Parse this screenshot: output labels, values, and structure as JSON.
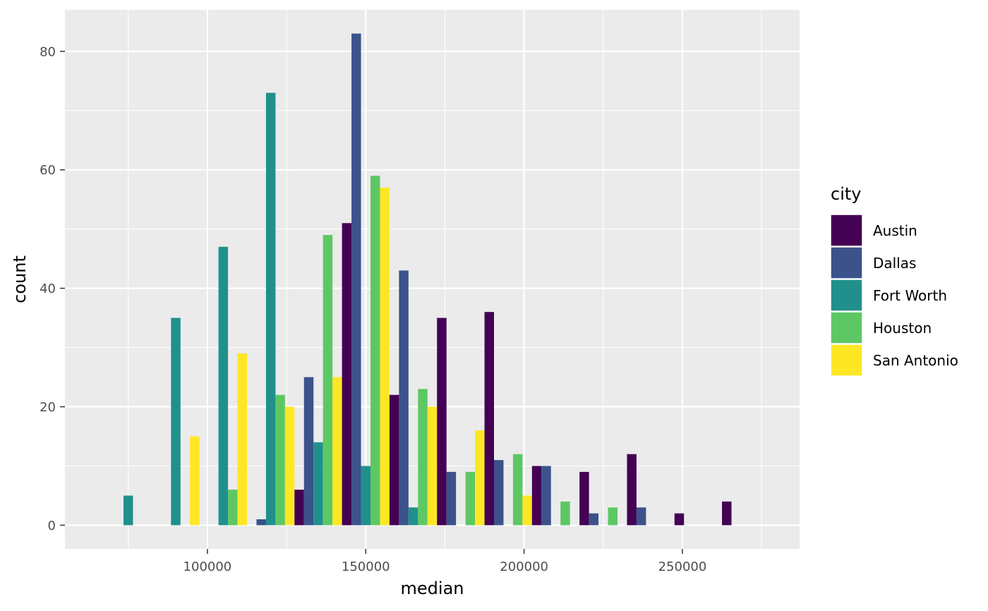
{
  "chart_data": {
    "type": "bar",
    "xlabel": "median",
    "ylabel": "count",
    "xlim": [
      55000,
      287000
    ],
    "ylim": [
      -4,
      87
    ],
    "x_ticks": [
      100000,
      150000,
      200000,
      250000
    ],
    "x_minor_ticks": [
      75000,
      125000,
      175000,
      225000,
      275000
    ],
    "y_ticks": [
      0,
      20,
      40,
      60,
      80
    ],
    "y_minor_ticks": [
      10,
      30,
      50,
      70
    ],
    "bins": [
      75000,
      90000,
      105000,
      120000,
      135000,
      150000,
      165000,
      180000,
      195000,
      210000,
      225000,
      240000,
      255000,
      270000
    ],
    "bin_width": 15000,
    "grid": true,
    "legend": {
      "title": "city",
      "position": "right"
    },
    "series": [
      {
        "name": "Austin",
        "color": "#440154",
        "values": [
          0,
          0,
          0,
          0,
          6,
          51,
          22,
          35,
          36,
          10,
          9,
          12,
          2,
          4
        ]
      },
      {
        "name": "Dallas",
        "color": "#3B528B",
        "values": [
          0,
          0,
          0,
          1,
          25,
          83,
          43,
          9,
          11,
          10,
          2,
          3,
          0,
          0
        ]
      },
      {
        "name": "Fort Worth",
        "color": "#21908C",
        "values": [
          5,
          35,
          47,
          73,
          14,
          10,
          3,
          0,
          0,
          0,
          0,
          0,
          0,
          0
        ]
      },
      {
        "name": "Houston",
        "color": "#5DC863",
        "values": [
          0,
          0,
          6,
          22,
          49,
          59,
          23,
          9,
          12,
          4,
          3,
          0,
          0,
          0
        ]
      },
      {
        "name": "San Antonio",
        "color": "#FDE725",
        "values": [
          0,
          15,
          29,
          20,
          25,
          57,
          20,
          16,
          5,
          0,
          0,
          0,
          0,
          0
        ]
      }
    ]
  }
}
